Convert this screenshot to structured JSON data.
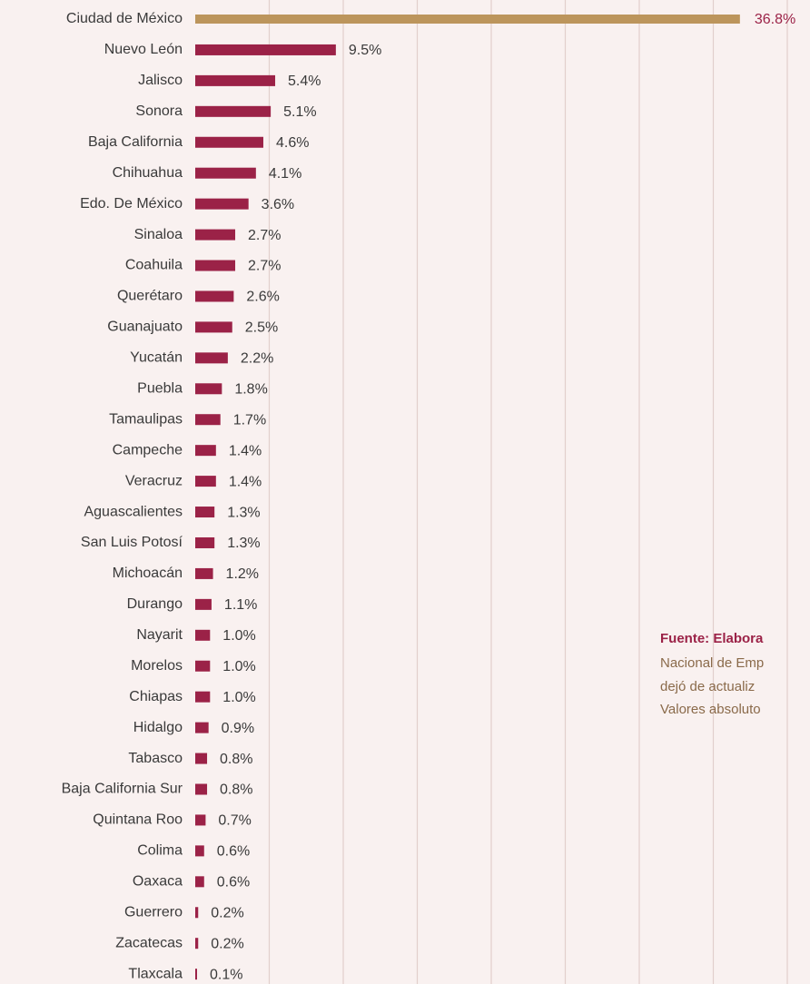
{
  "chart_data": {
    "type": "bar",
    "orientation": "horizontal",
    "categories": [
      "Ciudad de México",
      "Nuevo León",
      "Jalisco",
      "Sonora",
      "Baja California",
      "Chihuahua",
      "Edo. De México",
      "Sinaloa",
      "Coahuila",
      "Querétaro",
      "Guanajuato",
      "Yucatán",
      "Puebla",
      "Tamaulipas",
      "Campeche",
      "Veracruz",
      "Aguascalientes",
      "San Luis Potosí",
      "Michoacán",
      "Durango",
      "Nayarit",
      "Morelos",
      "Chiapas",
      "Hidalgo",
      "Tabasco",
      "Baja California Sur",
      "Quintana Roo",
      "Colima",
      "Oaxaca",
      "Guerrero",
      "Zacatecas",
      "Tlaxcala"
    ],
    "values": [
      36.8,
      9.5,
      5.4,
      5.1,
      4.6,
      4.1,
      3.6,
      2.7,
      2.7,
      2.6,
      2.5,
      2.2,
      1.8,
      1.7,
      1.4,
      1.4,
      1.3,
      1.3,
      1.2,
      1.1,
      1.0,
      1.0,
      1.0,
      0.9,
      0.8,
      0.8,
      0.7,
      0.6,
      0.6,
      0.2,
      0.2,
      0.1
    ],
    "value_labels": [
      "36.8%",
      "9.5%",
      "5.4%",
      "5.1%",
      "4.6%",
      "4.1%",
      "3.6%",
      "2.7%",
      "2.7%",
      "2.6%",
      "2.5%",
      "2.2%",
      "1.8%",
      "1.7%",
      "1.4%",
      "1.4%",
      "1.3%",
      "1.3%",
      "1.2%",
      "1.1%",
      "1.0%",
      "1.0%",
      "1.0%",
      "0.9%",
      "0.8%",
      "0.8%",
      "0.7%",
      "0.6%",
      "0.6%",
      "0.2%",
      "0.2%",
      "0.1%"
    ],
    "colors": [
      "#bc955c",
      "#9b2247",
      "#9b2247",
      "#9b2247",
      "#9b2247",
      "#9b2247",
      "#9b2247",
      "#9b2247",
      "#9b2247",
      "#9b2247",
      "#9b2247",
      "#9b2247",
      "#9b2247",
      "#9b2247",
      "#9b2247",
      "#9b2247",
      "#9b2247",
      "#9b2247",
      "#9b2247",
      "#9b2247",
      "#9b2247",
      "#9b2247",
      "#9b2247",
      "#9b2247",
      "#9b2247",
      "#9b2247",
      "#9b2247",
      "#9b2247",
      "#9b2247",
      "#9b2247",
      "#9b2247",
      "#9b2247"
    ],
    "xlim": [
      0,
      40
    ],
    "xticks": [
      0,
      5,
      10,
      15,
      20,
      25,
      30,
      35,
      40
    ],
    "grid": true,
    "source_note": [
      "Fuente: Elabora",
      "Nacional de Emp",
      "dejó de actualiz",
      "Valores absoluto"
    ]
  }
}
